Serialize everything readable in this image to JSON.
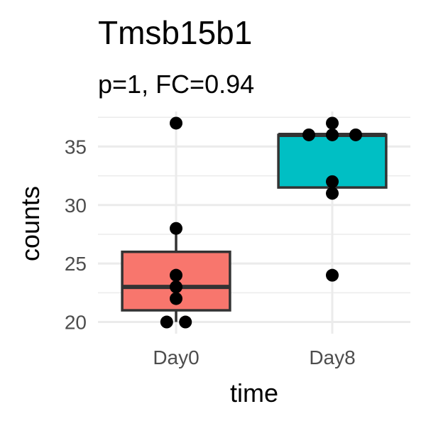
{
  "chart_data": {
    "type": "box",
    "title": "Tmsb15b1",
    "subtitle": "p=1, FC=0.94",
    "xlabel": "time",
    "ylabel": "counts",
    "categories": [
      "Day0",
      "Day8"
    ],
    "ylim": [
      19,
      38
    ],
    "yticks": [
      20,
      25,
      30,
      35
    ],
    "grid": true,
    "legend": "none",
    "groups": [
      {
        "category": "Day0",
        "color": "#F8766D",
        "q1": 21,
        "median": 23,
        "q3": 26,
        "whisker_low": 20,
        "whisker_high": 28,
        "points": [
          {
            "y": 37,
            "jitter": 0
          },
          {
            "y": 28,
            "jitter": 0
          },
          {
            "y": 24,
            "jitter": 0
          },
          {
            "y": 23,
            "jitter": 0
          },
          {
            "y": 22,
            "jitter": 0
          },
          {
            "y": 20,
            "jitter": -0.06
          },
          {
            "y": 20,
            "jitter": 0.06
          }
        ]
      },
      {
        "category": "Day8",
        "color": "#00BFC4",
        "q1": 31.5,
        "median": 36,
        "q3": 36,
        "whisker_low": 31,
        "whisker_high": 37,
        "points": [
          {
            "y": 37,
            "jitter": 0
          },
          {
            "y": 36,
            "jitter": -0.15
          },
          {
            "y": 36,
            "jitter": 0
          },
          {
            "y": 36,
            "jitter": 0.15
          },
          {
            "y": 32,
            "jitter": 0
          },
          {
            "y": 31,
            "jitter": 0
          },
          {
            "y": 24,
            "jitter": 0
          }
        ]
      }
    ]
  }
}
